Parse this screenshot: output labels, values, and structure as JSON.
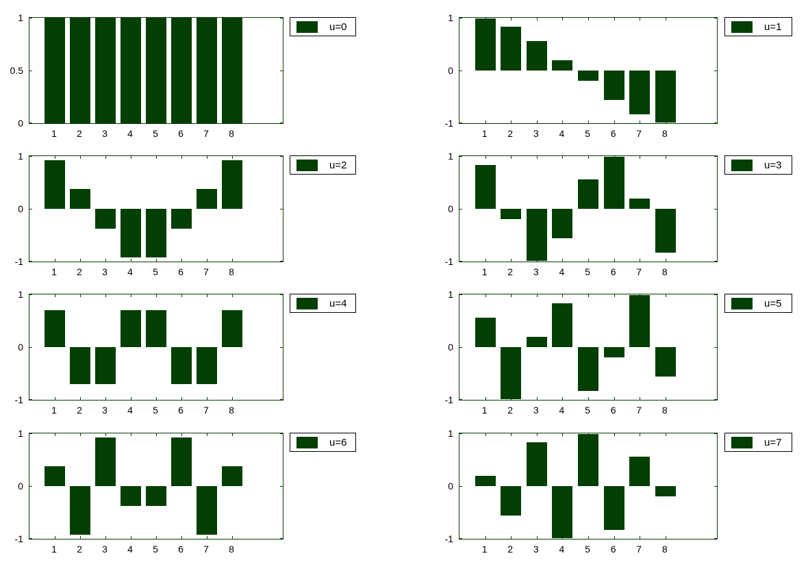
{
  "figure": {
    "description": "1-D DCT basis functions, 8 bar subplots in a 4x2 grid",
    "colors": {
      "bar": "#033f03",
      "frame": "#0b3b0b",
      "text": "#000000",
      "legend_border": "#000000",
      "background": "#ffffff"
    }
  },
  "chart_data": [
    {
      "type": "bar",
      "legend": "u=0",
      "categories": [
        1,
        2,
        3,
        4,
        5,
        6,
        7,
        8
      ],
      "values": [
        1,
        1,
        1,
        1,
        1,
        1,
        1,
        1
      ],
      "xtick_labels": [
        "1",
        "2",
        "3",
        "4",
        "5",
        "6",
        "7",
        "8"
      ],
      "ylim": [
        0,
        1
      ],
      "yticks": [
        0,
        0.5,
        1
      ],
      "ytick_labels": [
        "0",
        "0.5",
        "1"
      ],
      "xlim": [
        0,
        10
      ],
      "grid": false,
      "legend_position": "right-top"
    },
    {
      "type": "bar",
      "legend": "u=1",
      "categories": [
        1,
        2,
        3,
        4,
        5,
        6,
        7,
        8
      ],
      "values": [
        0.981,
        0.831,
        0.556,
        0.195,
        -0.195,
        -0.556,
        -0.831,
        -0.981
      ],
      "xtick_labels": [
        "1",
        "2",
        "3",
        "4",
        "5",
        "6",
        "7",
        "8"
      ],
      "ylim": [
        -1,
        1
      ],
      "yticks": [
        -1,
        0,
        1
      ],
      "ytick_labels": [
        "-1",
        "0",
        "1"
      ],
      "xlim": [
        0,
        10
      ],
      "grid": false,
      "legend_position": "right-top"
    },
    {
      "type": "bar",
      "legend": "u=2",
      "categories": [
        1,
        2,
        3,
        4,
        5,
        6,
        7,
        8
      ],
      "values": [
        0.924,
        0.383,
        -0.383,
        -0.924,
        -0.924,
        -0.383,
        0.383,
        0.924
      ],
      "xtick_labels": [
        "1",
        "2",
        "3",
        "4",
        "5",
        "6",
        "7",
        "8"
      ],
      "ylim": [
        -1,
        1
      ],
      "yticks": [
        -1,
        0,
        1
      ],
      "ytick_labels": [
        "-1",
        "0",
        "1"
      ],
      "xlim": [
        0,
        10
      ],
      "grid": false,
      "legend_position": "right-top"
    },
    {
      "type": "bar",
      "legend": "u=3",
      "categories": [
        1,
        2,
        3,
        4,
        5,
        6,
        7,
        8
      ],
      "values": [
        0.831,
        -0.195,
        -0.981,
        -0.556,
        0.556,
        0.981,
        0.195,
        -0.831
      ],
      "xtick_labels": [
        "1",
        "2",
        "3",
        "4",
        "5",
        "6",
        "7",
        "8"
      ],
      "ylim": [
        -1,
        1
      ],
      "yticks": [
        -1,
        0,
        1
      ],
      "ytick_labels": [
        "-1",
        "0",
        "1"
      ],
      "xlim": [
        0,
        10
      ],
      "grid": false,
      "legend_position": "right-top"
    },
    {
      "type": "bar",
      "legend": "u=4",
      "categories": [
        1,
        2,
        3,
        4,
        5,
        6,
        7,
        8
      ],
      "values": [
        0.707,
        -0.707,
        -0.707,
        0.707,
        0.707,
        -0.707,
        -0.707,
        0.707
      ],
      "xtick_labels": [
        "1",
        "2",
        "3",
        "4",
        "5",
        "6",
        "7",
        "8"
      ],
      "ylim": [
        -1,
        1
      ],
      "yticks": [
        -1,
        0,
        1
      ],
      "ytick_labels": [
        "-1",
        "0",
        "1"
      ],
      "xlim": [
        0,
        10
      ],
      "grid": false,
      "legend_position": "right-top"
    },
    {
      "type": "bar",
      "legend": "u=5",
      "categories": [
        1,
        2,
        3,
        4,
        5,
        6,
        7,
        8
      ],
      "values": [
        0.556,
        -0.981,
        0.195,
        0.831,
        -0.831,
        -0.195,
        0.981,
        -0.556
      ],
      "xtick_labels": [
        "1",
        "2",
        "3",
        "4",
        "5",
        "6",
        "7",
        "8"
      ],
      "ylim": [
        -1,
        1
      ],
      "yticks": [
        -1,
        0,
        1
      ],
      "ytick_labels": [
        "-1",
        "0",
        "1"
      ],
      "xlim": [
        0,
        10
      ],
      "grid": false,
      "legend_position": "right-top"
    },
    {
      "type": "bar",
      "legend": "u=6",
      "categories": [
        1,
        2,
        3,
        4,
        5,
        6,
        7,
        8
      ],
      "values": [
        0.383,
        -0.924,
        0.924,
        -0.383,
        -0.383,
        0.924,
        -0.924,
        0.383
      ],
      "xtick_labels": [
        "1",
        "2",
        "3",
        "4",
        "5",
        "6",
        "7",
        "8"
      ],
      "ylim": [
        -1,
        1
      ],
      "yticks": [
        -1,
        0,
        1
      ],
      "ytick_labels": [
        "-1",
        "0",
        "1"
      ],
      "xlim": [
        0,
        10
      ],
      "grid": false,
      "legend_position": "right-top"
    },
    {
      "type": "bar",
      "legend": "u=7",
      "categories": [
        1,
        2,
        3,
        4,
        5,
        6,
        7,
        8
      ],
      "values": [
        0.195,
        -0.556,
        0.831,
        -0.981,
        0.981,
        -0.831,
        0.556,
        -0.195
      ],
      "xtick_labels": [
        "1",
        "2",
        "3",
        "4",
        "5",
        "6",
        "7",
        "8"
      ],
      "ylim": [
        -1,
        1
      ],
      "yticks": [
        -1,
        0,
        1
      ],
      "ytick_labels": [
        "-1",
        "0",
        "1"
      ],
      "xlim": [
        0,
        10
      ],
      "grid": false,
      "legend_position": "right-top"
    }
  ]
}
